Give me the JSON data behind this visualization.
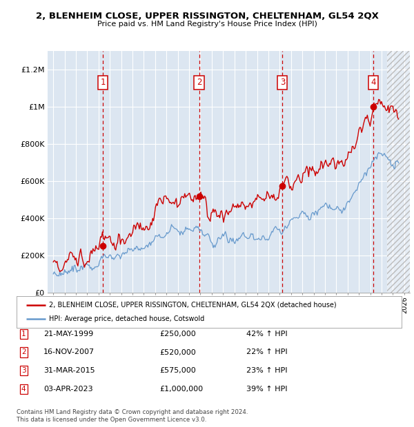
{
  "title": "2, BLENHEIM CLOSE, UPPER RISSINGTON, CHELTENHAM, GL54 2QX",
  "subtitle": "Price paid vs. HM Land Registry's House Price Index (HPI)",
  "sale_labels": [
    "1",
    "2",
    "3",
    "4"
  ],
  "sale_dates_str": [
    "21-MAY-1999",
    "16-NOV-2007",
    "31-MAR-2015",
    "03-APR-2023"
  ],
  "sale_prices_str": [
    "£250,000",
    "£520,000",
    "£575,000",
    "£1,000,000"
  ],
  "sale_hpi_str": [
    "42% ↑ HPI",
    "22% ↑ HPI",
    "23% ↑ HPI",
    "39% ↑ HPI"
  ],
  "legend_red": "2, BLENHEIM CLOSE, UPPER RISSINGTON, CHELTENHAM, GL54 2QX (detached house)",
  "legend_blue": "HPI: Average price, detached house, Cotswold",
  "footer1": "Contains HM Land Registry data © Crown copyright and database right 2024.",
  "footer2": "This data is licensed under the Open Government Licence v3.0.",
  "sale_dates_num": [
    1999.38,
    2007.88,
    2015.25,
    2023.26
  ],
  "sale_prices": [
    250000,
    520000,
    575000,
    1000000
  ],
  "xmin": 1994.5,
  "xmax": 2026.5,
  "ymin": 0,
  "ymax": 1300000,
  "hatch_start": 2024.5,
  "red_color": "#cc0000",
  "blue_color": "#6699cc",
  "bg_color": "#dce6f1",
  "grid_color": "#ffffff",
  "vline_color": "#cc0000",
  "box_color": "#cc0000",
  "yticks": [
    0,
    200000,
    400000,
    600000,
    800000,
    1000000,
    1200000
  ],
  "ytick_labels": [
    "£0",
    "£200K",
    "£400K",
    "£600K",
    "£800K",
    "£1M",
    "£1.2M"
  ]
}
